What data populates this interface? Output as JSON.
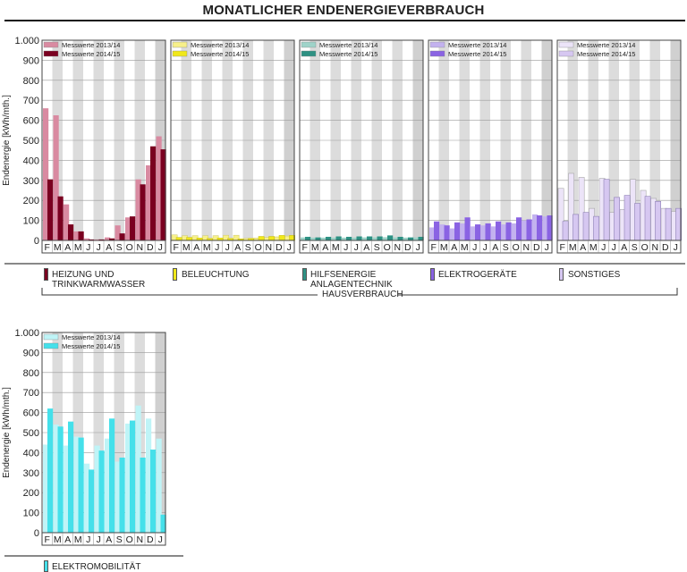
{
  "title": "MONATLICHER ENDENERGIEVERBRAUCH",
  "group_label": "HAUSVERBRAUCH",
  "axis": {
    "ylabel": "Endenergie [kWh/mth.]",
    "ticks": [
      "0",
      "100",
      "200",
      "300",
      "400",
      "500",
      "600",
      "700",
      "800",
      "900",
      "1.000"
    ],
    "months": [
      "F",
      "M",
      "A",
      "M",
      "J",
      "J",
      "A",
      "S",
      "O",
      "N",
      "D",
      "J"
    ]
  },
  "legend": {
    "s1": "Messwerte 2013/14",
    "s2": "Messwerte 2014/15"
  },
  "categories": [
    {
      "line1": "HEIZUNG UND",
      "line2": "TRINKWARMWASSER",
      "color_light": "#d98aa1",
      "color_dark": "#7a0020"
    },
    {
      "line1": "BELEUCHTUNG",
      "line2": "",
      "color_light": "#f7f08a",
      "color_dark": "#f0e81a"
    },
    {
      "line1": "HILFSENERGIE",
      "line2": "ANLAGENTECHNIK",
      "color_light": "#9fd3c9",
      "color_dark": "#2e9183"
    },
    {
      "line1": "ELEKTROGERÄTE",
      "line2": "",
      "color_light": "#c3b2ef",
      "color_dark": "#8a63e3"
    },
    {
      "line1": "SONSTIGES",
      "line2": "",
      "color_light": "#ece4f8",
      "color_dark": "#d6c7f1"
    },
    {
      "line1": "ELEKTROMOBILITÄT",
      "line2": "",
      "color_light": "#bff4f7",
      "color_dark": "#45e0ea"
    }
  ],
  "chart_data": [
    {
      "type": "bar",
      "ylabel": "Endenergie [kWh/mth.]",
      "ylim": [
        0,
        1000
      ],
      "categories": [
        "F",
        "M",
        "A",
        "M",
        "J",
        "J",
        "A",
        "S",
        "O",
        "N",
        "D",
        "J"
      ],
      "series": [
        {
          "name": "Messwerte 2013/14",
          "values": [
            660,
            625,
            180,
            45,
            10,
            5,
            15,
            75,
            115,
            305,
            375,
            520
          ]
        },
        {
          "name": "Messwerte 2014/15",
          "values": [
            305,
            220,
            80,
            45,
            5,
            5,
            10,
            35,
            120,
            280,
            470,
            455
          ]
        }
      ]
    },
    {
      "type": "bar",
      "ylabel": "Endenergie [kWh/mth.]",
      "ylim": [
        0,
        1000
      ],
      "categories": [
        "F",
        "M",
        "A",
        "M",
        "J",
        "J",
        "A",
        "S",
        "O",
        "N",
        "D",
        "J"
      ],
      "series": [
        {
          "name": "Messwerte 2013/14",
          "values": [
            28,
            24,
            24,
            24,
            24,
            26,
            26,
            10,
            12,
            15,
            18,
            22
          ]
        },
        {
          "name": "Messwerte 2014/15",
          "values": [
            15,
            15,
            12,
            10,
            12,
            10,
            8,
            10,
            20,
            20,
            25,
            25
          ]
        }
      ]
    },
    {
      "type": "bar",
      "ylabel": "Endenergie [kWh/mth.]",
      "ylim": [
        0,
        1000
      ],
      "categories": [
        "F",
        "M",
        "A",
        "M",
        "J",
        "J",
        "A",
        "S",
        "O",
        "N",
        "D",
        "J"
      ],
      "series": [
        {
          "name": "Messwerte 2013/14",
          "values": [
            15,
            14,
            14,
            14,
            14,
            14,
            15,
            15,
            16,
            15,
            14,
            15
          ]
        },
        {
          "name": "Messwerte 2014/15",
          "values": [
            18,
            15,
            18,
            20,
            18,
            20,
            20,
            20,
            25,
            18,
            15,
            18
          ]
        }
      ]
    },
    {
      "type": "bar",
      "ylabel": "Endenergie [kWh/mth.]",
      "ylim": [
        0,
        1000
      ],
      "categories": [
        "F",
        "M",
        "A",
        "M",
        "J",
        "J",
        "A",
        "S",
        "O",
        "N",
        "D",
        "J"
      ],
      "series": [
        {
          "name": "Messwerte 2013/14",
          "values": [
            65,
            80,
            60,
            85,
            70,
            75,
            70,
            80,
            85,
            100,
            130,
            120
          ]
        },
        {
          "name": "Messwerte 2014/15",
          "values": [
            95,
            75,
            90,
            115,
            80,
            85,
            95,
            90,
            115,
            105,
            125,
            125
          ]
        }
      ]
    },
    {
      "type": "bar",
      "ylabel": "Endenergie [kWh/mth.]",
      "ylim": [
        0,
        1000
      ],
      "categories": [
        "F",
        "M",
        "A",
        "M",
        "J",
        "J",
        "A",
        "S",
        "O",
        "N",
        "D",
        "J"
      ],
      "series": [
        {
          "name": "Messwerte 2013/14",
          "values": [
            260,
            335,
            315,
            160,
            310,
            140,
            155,
            305,
            250,
            210,
            160,
            145
          ]
        },
        {
          "name": "Messwerte 2014/15",
          "values": [
            95,
            130,
            140,
            120,
            305,
            215,
            225,
            185,
            220,
            195,
            160,
            160
          ]
        }
      ]
    },
    {
      "type": "bar",
      "ylabel": "Endenergie [kWh/mth.]",
      "ylim": [
        0,
        1000
      ],
      "categories": [
        "F",
        "M",
        "A",
        "M",
        "J",
        "J",
        "A",
        "S",
        "O",
        "N",
        "D",
        "J"
      ],
      "series": [
        {
          "name": "Messwerte 2013/14",
          "values": [
            440,
            540,
            435,
            480,
            345,
            435,
            470,
            355,
            545,
            635,
            570,
            470
          ]
        },
        {
          "name": "Messwerte 2014/15",
          "values": [
            620,
            530,
            555,
            475,
            315,
            410,
            570,
            375,
            560,
            375,
            415,
            90
          ]
        }
      ]
    }
  ]
}
